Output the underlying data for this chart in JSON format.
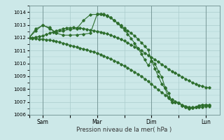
{
  "background_color": "#cce8e8",
  "grid_color": "#aacccc",
  "line_color": "#2d6e2d",
  "xlabel": "Pression niveau de la mer( hPa )",
  "ylim": [
    1006,
    1014.5
  ],
  "yticks": [
    1006,
    1007,
    1008,
    1009,
    1010,
    1011,
    1012,
    1013,
    1014
  ],
  "xtick_labels": [
    "",
    "Sam",
    "",
    "Mar",
    "",
    "Dim",
    "",
    "Lun"
  ],
  "xtick_positions": [
    0,
    8,
    24,
    40,
    56,
    72,
    88,
    104
  ],
  "vlines": [
    8,
    40,
    72,
    104
  ],
  "xlim": [
    0,
    112
  ],
  "series1_x": [
    0,
    2,
    4,
    6,
    8,
    10,
    12,
    14,
    16,
    18,
    20,
    22,
    24,
    26,
    28,
    30,
    32,
    34,
    36,
    38,
    40,
    42,
    44,
    46,
    48,
    50,
    52,
    54,
    56,
    58,
    60,
    62,
    64,
    66,
    68,
    70,
    72,
    74,
    76,
    78,
    80,
    82,
    84,
    86,
    88,
    90,
    92,
    94,
    96,
    98,
    100,
    102,
    104,
    106
  ],
  "series1_y": [
    1012.0,
    1011.95,
    1011.92,
    1011.9,
    1011.88,
    1011.85,
    1011.82,
    1011.78,
    1011.72,
    1011.65,
    1011.58,
    1011.5,
    1011.42,
    1011.35,
    1011.27,
    1011.2,
    1011.12,
    1011.05,
    1010.97,
    1010.9,
    1010.8,
    1010.7,
    1010.58,
    1010.47,
    1010.35,
    1010.22,
    1010.1,
    1009.95,
    1009.8,
    1009.65,
    1009.5,
    1009.33,
    1009.17,
    1009.0,
    1008.8,
    1008.6,
    1008.38,
    1008.17,
    1007.95,
    1007.75,
    1007.55,
    1007.35,
    1007.2,
    1007.05,
    1006.9,
    1006.78,
    1006.68,
    1006.6,
    1006.58,
    1006.58,
    1006.6,
    1006.62,
    1006.65,
    1006.65
  ],
  "series2_x": [
    0,
    2,
    4,
    6,
    8,
    10,
    12,
    14,
    16,
    18,
    20,
    22,
    24,
    26,
    28,
    30,
    32,
    34,
    36,
    38,
    40,
    42,
    44,
    46,
    48,
    50,
    52,
    54,
    56,
    58,
    60,
    62,
    64,
    66,
    68,
    70,
    72,
    74,
    76,
    78,
    80,
    82,
    84,
    86,
    88,
    90,
    92,
    94,
    96,
    98,
    100,
    102,
    104,
    106
  ],
  "series2_y": [
    1012.0,
    1012.0,
    1012.05,
    1012.1,
    1012.15,
    1012.25,
    1012.35,
    1012.45,
    1012.55,
    1012.62,
    1012.7,
    1012.75,
    1012.78,
    1012.8,
    1012.78,
    1012.75,
    1012.72,
    1012.65,
    1012.6,
    1012.55,
    1012.5,
    1012.45,
    1012.38,
    1012.3,
    1012.2,
    1012.1,
    1012.0,
    1011.88,
    1011.75,
    1011.6,
    1011.45,
    1011.3,
    1011.15,
    1011.0,
    1010.82,
    1010.65,
    1010.48,
    1010.3,
    1010.12,
    1009.93,
    1009.75,
    1009.55,
    1009.4,
    1009.25,
    1009.1,
    1008.95,
    1008.8,
    1008.65,
    1008.52,
    1008.4,
    1008.3,
    1008.22,
    1008.15,
    1008.1
  ],
  "series3_x": [
    0,
    4,
    8,
    12,
    16,
    20,
    24,
    28,
    32,
    36,
    40,
    42,
    44,
    46,
    48,
    50,
    52,
    54,
    56,
    58,
    60,
    62,
    64,
    66,
    68,
    70,
    72,
    74,
    76,
    78,
    80,
    82,
    84,
    86,
    88,
    90,
    92,
    94,
    96,
    98,
    100,
    102,
    104,
    106
  ],
  "series3_y": [
    1012.0,
    1012.55,
    1013.0,
    1012.7,
    1012.4,
    1012.55,
    1012.65,
    1012.7,
    1013.35,
    1013.8,
    1013.82,
    1013.85,
    1013.8,
    1013.7,
    1013.55,
    1013.35,
    1013.15,
    1012.95,
    1012.75,
    1012.55,
    1012.35,
    1012.15,
    1011.9,
    1011.62,
    1011.35,
    1011.05,
    1010.18,
    1010.0,
    1009.4,
    1008.95,
    1008.12,
    1007.7,
    1007.0,
    1007.0,
    1006.95,
    1006.72,
    1006.58,
    1006.5,
    1006.52,
    1006.6,
    1006.72,
    1006.78,
    1006.78,
    1006.75
  ],
  "series4_x": [
    0,
    4,
    8,
    12,
    16,
    20,
    24,
    28,
    32,
    36,
    40,
    42,
    44,
    46,
    48,
    50,
    52,
    54,
    56,
    58,
    60,
    62,
    64,
    66,
    68,
    70,
    72,
    74,
    76,
    78,
    80,
    82,
    84,
    86,
    88,
    90,
    92,
    94,
    96,
    98,
    100,
    102,
    104,
    106
  ],
  "series4_y": [
    1012.0,
    1012.7,
    1012.95,
    1012.8,
    1012.35,
    1012.2,
    1012.2,
    1012.22,
    1012.28,
    1012.35,
    1013.82,
    1013.87,
    1013.82,
    1013.72,
    1013.55,
    1013.35,
    1013.12,
    1012.88,
    1012.6,
    1012.28,
    1011.95,
    1011.58,
    1011.18,
    1010.75,
    1010.3,
    1009.85,
    1010.2,
    1009.6,
    1009.0,
    1008.4,
    1008.05,
    1007.3,
    1007.0,
    1007.0,
    1006.95,
    1006.72,
    1006.58,
    1006.5,
    1006.52,
    1006.6,
    1006.72,
    1006.78,
    1006.78,
    1006.75
  ]
}
